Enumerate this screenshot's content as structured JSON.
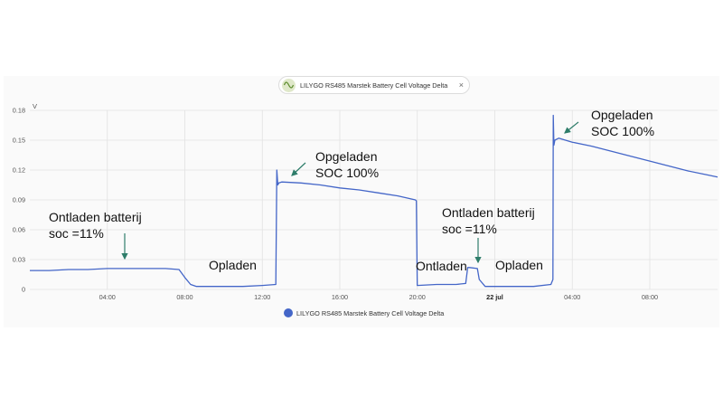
{
  "legend_chip": {
    "label": "LILYGO RS485 Marstek Battery Cell Voltage Delta",
    "close": "×"
  },
  "annotations": {
    "a1": "Ontladen batterij\nsoc =11%",
    "a2": "Opladen",
    "a3": "Opgeladen\nSOC 100%",
    "a4": "Ontladen batterij\nsoc =11%",
    "a5": "Ontladen",
    "a6": "Opladen",
    "a7": "Opgeladen\nSOC 100%"
  },
  "chart_data": {
    "type": "line",
    "title": "",
    "xlabel": "",
    "ylabel": "V",
    "ylim": [
      0,
      0.18
    ],
    "xlim": [
      0,
      35.5
    ],
    "y_ticks": [
      "0",
      "0.03",
      "0.06",
      "0.09",
      "0.12",
      "0.15",
      "0.18"
    ],
    "x_ticks": [
      "04:00",
      "08:00",
      "12:00",
      "16:00",
      "20:00",
      "22 jul",
      "04:00",
      "08:00"
    ],
    "x_tick_hours": [
      4,
      8,
      12,
      16,
      20,
      24,
      28,
      32
    ],
    "grid": true,
    "legend": "bottom",
    "series": [
      {
        "name": "LILYGO RS485 Marstek Battery Cell Voltage Delta",
        "color": "#4466c8",
        "x": [
          0,
          1,
          2,
          3,
          4,
          5,
          6,
          7,
          7.7,
          8,
          8.3,
          8.6,
          9,
          10,
          11,
          12,
          12.7,
          12.75,
          12.8,
          12.85,
          13,
          14,
          15,
          16,
          17,
          18,
          19,
          19.9,
          19.95,
          20,
          21,
          22,
          22.5,
          22.6,
          22.7,
          23.1,
          23.2,
          23.5,
          24,
          25,
          26,
          26.9,
          27,
          27.02,
          27.05,
          27.1,
          27.3,
          28,
          29,
          30,
          31,
          32,
          33,
          34,
          35,
          35.5
        ],
        "y": [
          0.019,
          0.019,
          0.02,
          0.02,
          0.021,
          0.021,
          0.021,
          0.021,
          0.02,
          0.012,
          0.005,
          0.003,
          0.003,
          0.003,
          0.003,
          0.004,
          0.005,
          0.12,
          0.105,
          0.107,
          0.108,
          0.107,
          0.105,
          0.102,
          0.1,
          0.097,
          0.094,
          0.09,
          0.089,
          0.004,
          0.005,
          0.005,
          0.006,
          0.022,
          0.022,
          0.021,
          0.01,
          0.003,
          0.003,
          0.003,
          0.003,
          0.005,
          0.01,
          0.175,
          0.145,
          0.15,
          0.152,
          0.148,
          0.144,
          0.139,
          0.134,
          0.129,
          0.124,
          0.119,
          0.115,
          0.113
        ]
      }
    ]
  }
}
